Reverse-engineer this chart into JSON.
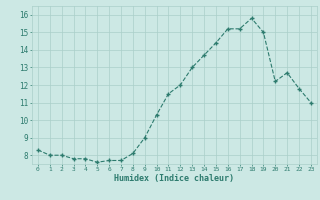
{
  "x": [
    0,
    1,
    2,
    3,
    4,
    5,
    6,
    7,
    8,
    9,
    10,
    11,
    12,
    13,
    14,
    15,
    16,
    17,
    18,
    19,
    20,
    21,
    22,
    23
  ],
  "y": [
    8.3,
    8.0,
    8.0,
    7.8,
    7.8,
    7.6,
    7.7,
    7.7,
    8.1,
    9.0,
    10.3,
    11.5,
    12.0,
    13.0,
    13.7,
    14.4,
    15.2,
    15.2,
    15.8,
    15.0,
    12.2,
    12.7,
    11.8,
    11.0
  ],
  "xlabel": "Humidex (Indice chaleur)",
  "xlim": [
    -0.5,
    23.5
  ],
  "ylim": [
    7.5,
    16.5
  ],
  "yticks": [
    8,
    9,
    10,
    11,
    12,
    13,
    14,
    15,
    16
  ],
  "xtick_labels": [
    "0",
    "1",
    "2",
    "3",
    "4",
    "5",
    "6",
    "7",
    "8",
    "9",
    "10",
    "11",
    "12",
    "13",
    "14",
    "15",
    "16",
    "17",
    "18",
    "19",
    "20",
    "21",
    "22",
    "23"
  ],
  "line_color": "#2d7b6e",
  "bg_color": "#cce8e4",
  "grid_color": "#aacfc9",
  "tick_color": "#2d7b6e",
  "label_color": "#2d7b6e"
}
